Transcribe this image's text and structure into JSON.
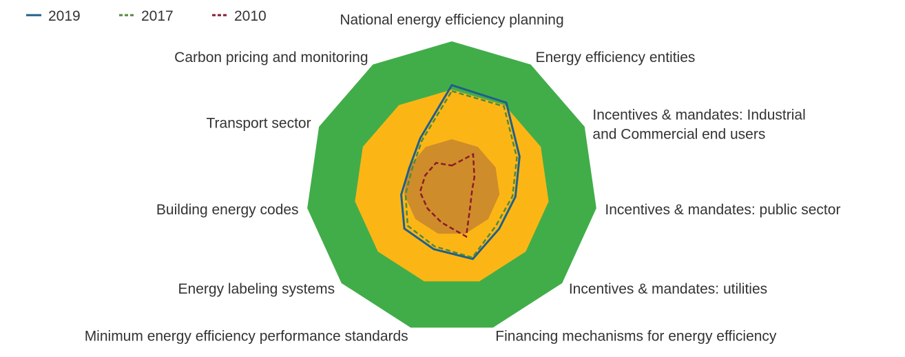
{
  "chart_data": {
    "type": "radar",
    "categories": [
      "National energy efficiency planning",
      "Energy efficiency entities",
      "Incentives & mandates: Industrial and Commercial end users",
      "Incentives & mandates: public sector",
      "Incentives & mandates: utilities",
      "Financing mechanisms for energy efficiency",
      "Minimum energy efficiency performance standards",
      "Energy labeling systems",
      "Building energy codes",
      "Transport sector",
      "Carbon pricing and monitoring"
    ],
    "rlim": [
      0,
      100
    ],
    "bands": [
      {
        "to": 100,
        "color": "#41ad49"
      },
      {
        "to": 67,
        "color": "#fbb616"
      },
      {
        "to": 33,
        "color": "#cf8c2a"
      }
    ],
    "series": [
      {
        "name": "2019",
        "color": "#1f5f8b",
        "dash": "solid",
        "values": [
          70,
          69,
          51,
          44,
          43,
          51,
          44,
          43,
          35,
          32,
          40
        ]
      },
      {
        "name": "2017",
        "color": "#4f8a3c",
        "dash": "dashed",
        "values": [
          66,
          66,
          49,
          42,
          40,
          50,
          42,
          40,
          32,
          30,
          38
        ]
      },
      {
        "name": "2010",
        "color": "#8b1a2b",
        "dash": "dashed",
        "values": [
          15,
          27,
          17,
          14,
          17,
          35,
          25,
          22,
          22,
          20,
          20
        ]
      }
    ],
    "legend": "top-left"
  }
}
